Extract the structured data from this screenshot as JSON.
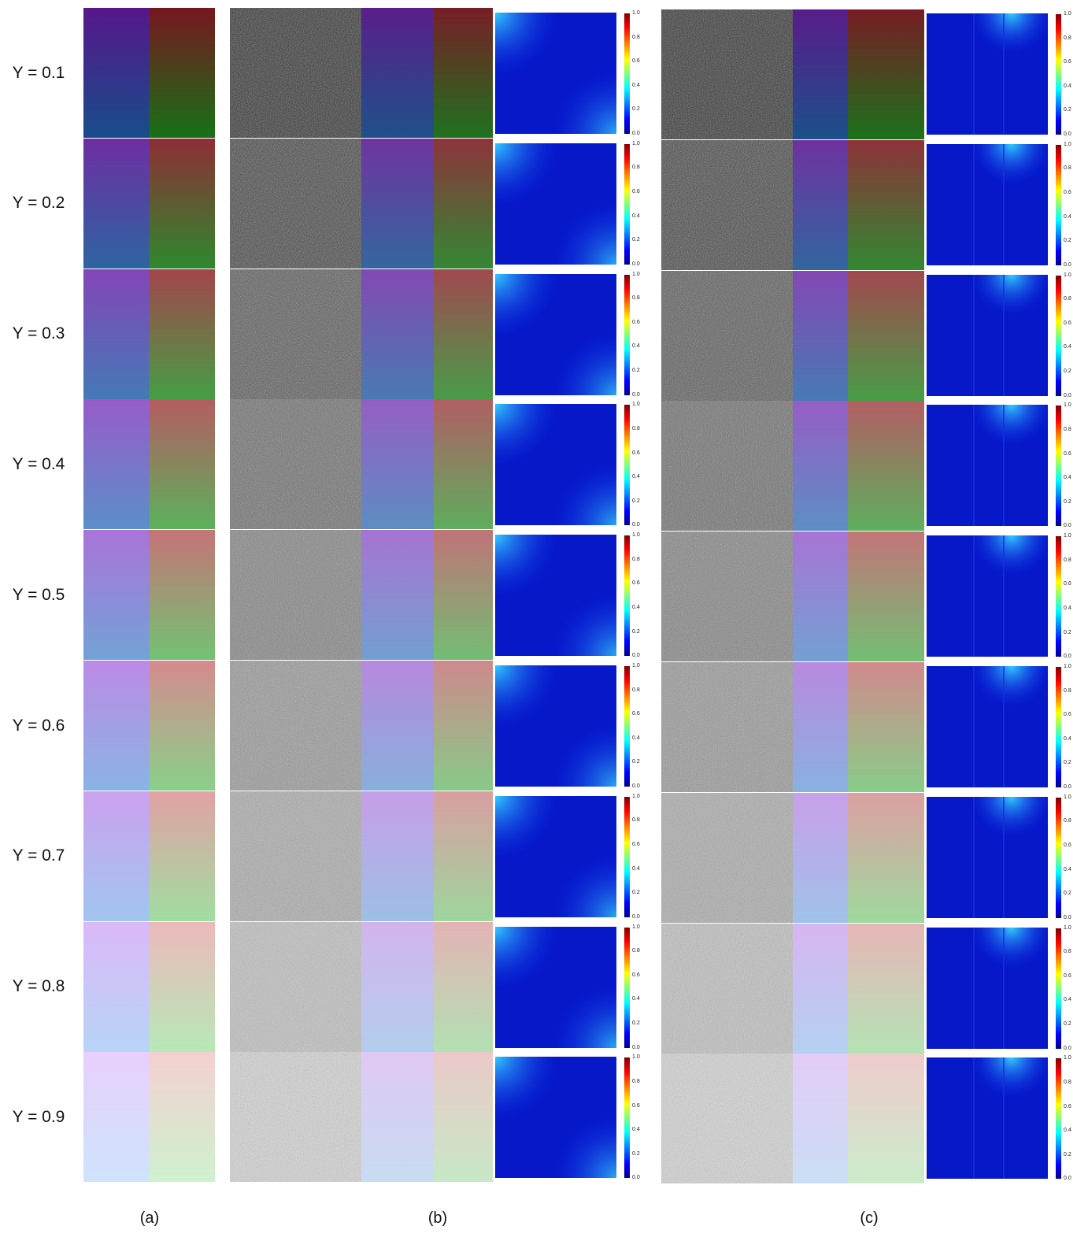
{
  "rows": [
    "Y = 0.1",
    "Y = 0.2",
    "Y = 0.3",
    "Y = 0.4",
    "Y = 0.5",
    "Y = 0.6",
    "Y = 0.7",
    "Y = 0.8",
    "Y = 0.9"
  ],
  "y_values": [
    0.1,
    0.2,
    0.3,
    0.4,
    0.5,
    0.6,
    0.7,
    0.8,
    0.9
  ],
  "colorbar_ticks": [
    "0.0",
    "0.2",
    "0.4",
    "0.6",
    "0.8",
    "1.0"
  ],
  "captions": [
    "(a)",
    "(b)",
    "(c)"
  ],
  "colors": {
    "corner_top_left": "#ff00ff",
    "corner_top_right": "#ff0000",
    "corner_bottom_left": "#00ffff",
    "corner_bottom_right": "#00ff00",
    "error_map_base": "#0a1ee6",
    "error_map_highlight": "#33ccff"
  }
}
